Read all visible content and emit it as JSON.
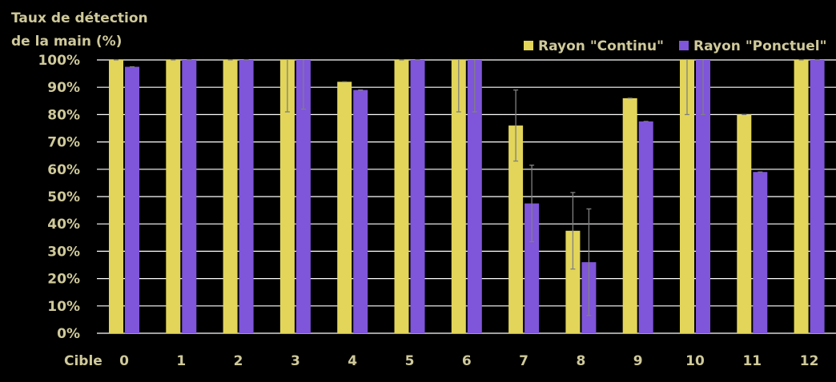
{
  "chart_data": {
    "type": "bar",
    "ylabel_line1": "Taux de détection",
    "ylabel_line2": "de la main (%)",
    "xlabel": "Cible",
    "categories": [
      "0",
      "1",
      "2",
      "3",
      "4",
      "5",
      "6",
      "7",
      "8",
      "9",
      "10",
      "11",
      "12"
    ],
    "yticks": [
      "0%",
      "10%",
      "20%",
      "30%",
      "40%",
      "50%",
      "60%",
      "70%",
      "80%",
      "90%",
      "100%"
    ],
    "ylim": [
      0,
      100
    ],
    "grid": true,
    "legend_position": "top-right",
    "series": [
      {
        "name": "Rayon \"Continu\"",
        "color": "#e2d55a",
        "values": [
          100,
          100,
          100,
          100,
          92,
          100,
          100,
          76,
          37.5,
          86,
          100,
          80,
          100
        ],
        "error": [
          0,
          0,
          0,
          19,
          0,
          0,
          19,
          13,
          14,
          0,
          20,
          0,
          0
        ]
      },
      {
        "name": "Rayon \"Ponctuel\"",
        "color": "#7f55d9",
        "values": [
          97.5,
          100,
          100,
          100,
          89,
          100,
          100,
          47.5,
          26,
          77.5,
          100,
          59,
          100
        ],
        "error": [
          0,
          0,
          0,
          18,
          0,
          0,
          19,
          14,
          19.5,
          0,
          20,
          0,
          0
        ]
      }
    ],
    "gridline_color": "#ffffff",
    "errorbar_color": "#808080",
    "text_color": "#cfc99a"
  }
}
